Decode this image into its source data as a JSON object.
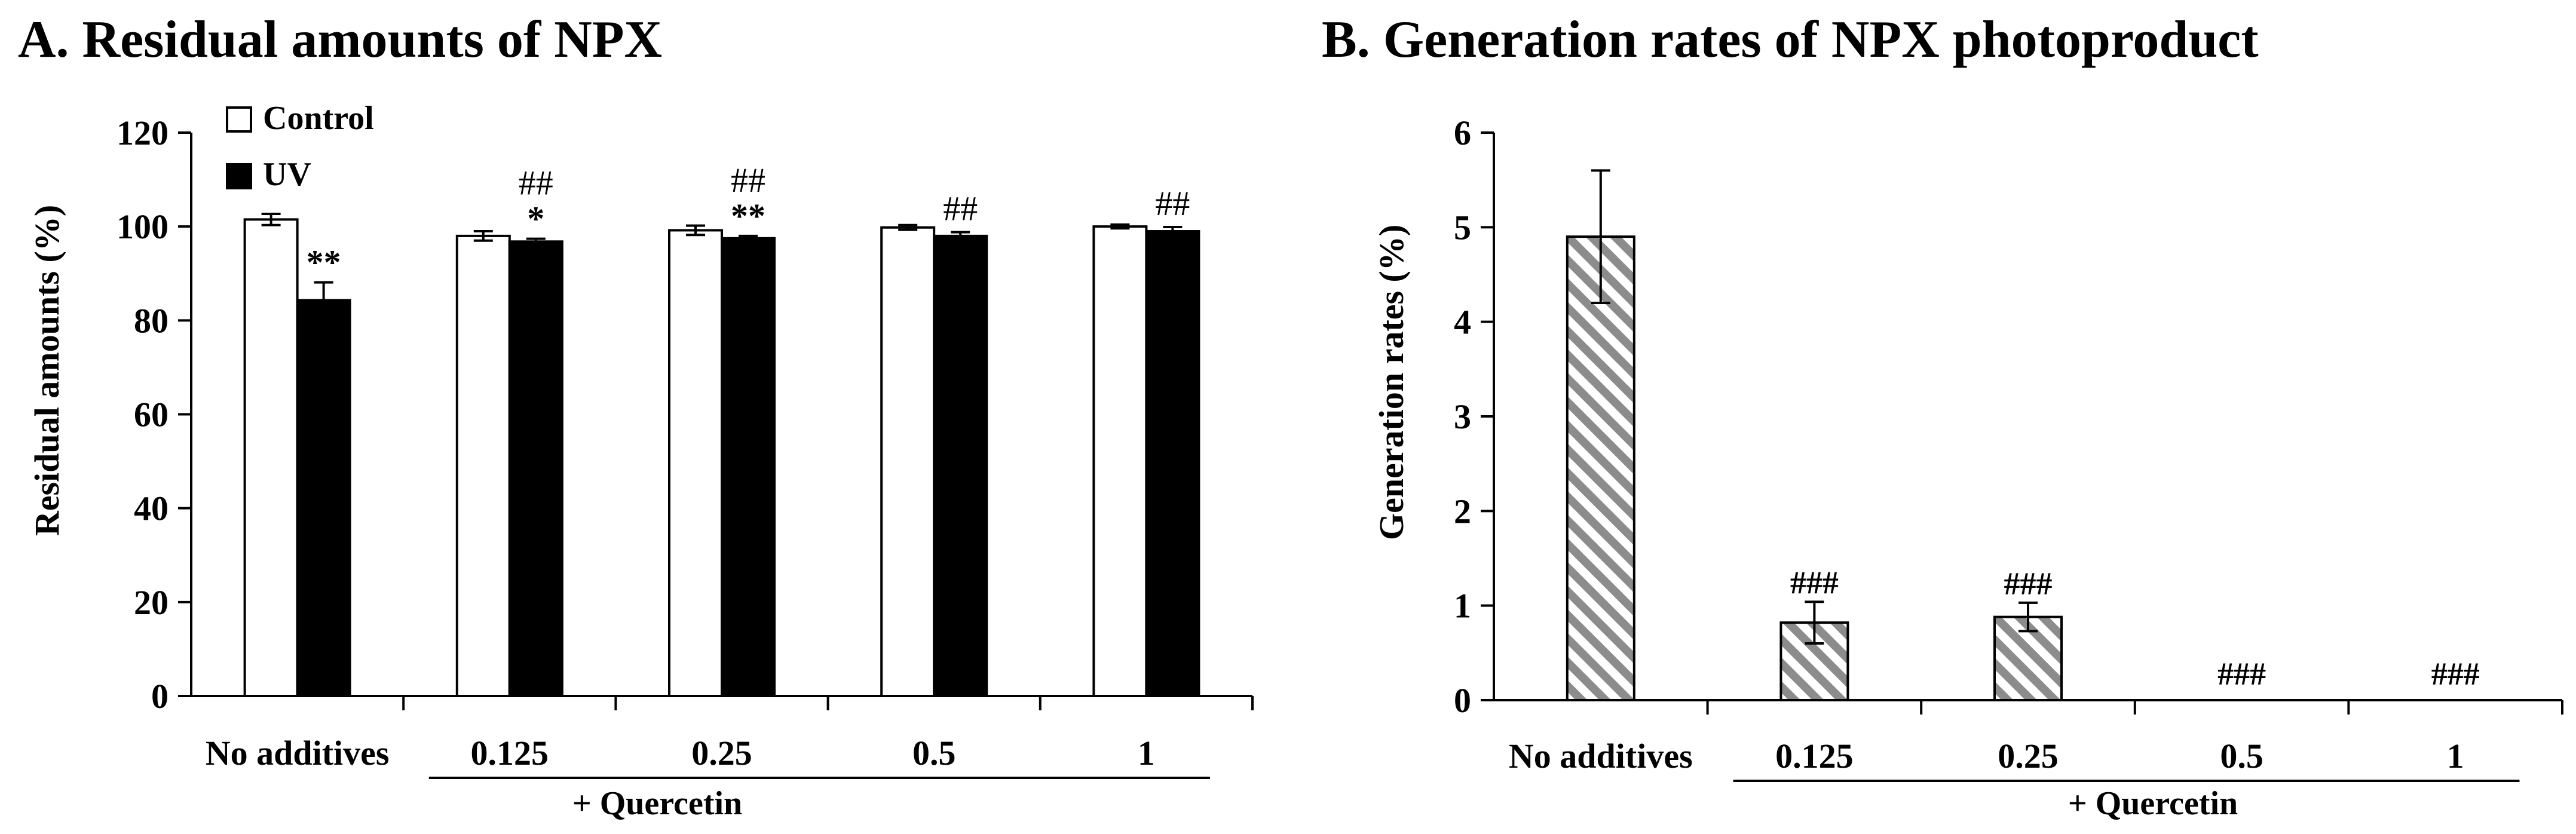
{
  "colors": {
    "ink": "#000000",
    "control_fill": "#ffffff",
    "uv_fill": "#000000",
    "hatch_stripe": "#8c8c8c",
    "background": "#ffffff"
  },
  "chart_data": [
    {
      "panel": "A",
      "type": "bar",
      "title": "A. Residual amounts of NPX",
      "xlabel": "",
      "ylabel": "Residual amounts (%)",
      "ylim": [
        0,
        120
      ],
      "yticks": [
        0,
        20,
        40,
        60,
        80,
        100,
        120
      ],
      "ytick_labels": [
        "0",
        "20",
        "40",
        "60",
        "80",
        "100",
        "120"
      ],
      "categories": [
        "No additives",
        "0.125",
        "0.25",
        "0.5",
        "1"
      ],
      "group_label": "+ Quercetin",
      "legend_position": "top-left",
      "series": [
        {
          "name": "Control",
          "values": [
            101.5,
            98,
            99.2,
            99.8,
            100
          ],
          "errors": [
            1.2,
            1.0,
            1.0,
            0.5,
            0.4
          ]
        },
        {
          "name": "UV",
          "values": [
            84.3,
            96.8,
            97.5,
            98,
            99
          ],
          "errors": [
            3.8,
            0.6,
            0.5,
            0.8,
            0.9
          ],
          "annotations": [
            "**",
            "*",
            "**",
            "",
            ""
          ]
        }
      ],
      "group_annotations": [
        "",
        "##",
        "##",
        "##",
        "##"
      ]
    },
    {
      "panel": "B",
      "type": "bar",
      "title": "B. Generation rates of NPX photoproduct",
      "xlabel": "",
      "ylabel": "Generation rates (%)",
      "ylim": [
        0,
        6
      ],
      "yticks": [
        0,
        1,
        2,
        3,
        4,
        5,
        6
      ],
      "ytick_labels": [
        "0",
        "1",
        "2",
        "3",
        "4",
        "5",
        "6"
      ],
      "categories": [
        "No additives",
        "0.125",
        "0.25",
        "0.5",
        "1"
      ],
      "group_label": "+ Quercetin",
      "series": [
        {
          "name": "UV",
          "values": [
            4.9,
            0.82,
            0.88,
            0,
            0
          ],
          "errors": [
            0.7,
            0.22,
            0.15,
            0,
            0
          ],
          "annotations": [
            "",
            "###",
            "###",
            "###",
            "###"
          ]
        }
      ]
    }
  ]
}
